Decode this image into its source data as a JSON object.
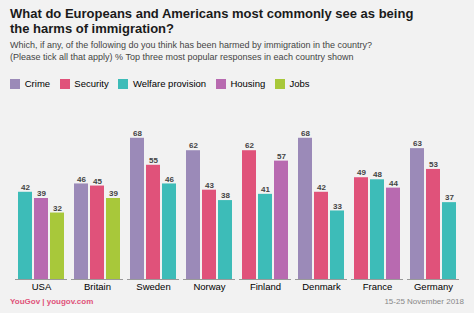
{
  "chart_data": {
    "type": "bar",
    "title": "What do Europeans and Americans most commonly see as being\nthe harms of immigration?",
    "subtitle": "Which, if any, of the following do you think has been harmed by immigration in the country?\n(Please tick all that apply) % Top three most popular responses in each country shown",
    "categories": [
      "USA",
      "Britain",
      "Sweden",
      "Norway",
      "Finland",
      "Denmark",
      "France",
      "Germany"
    ],
    "series": [
      {
        "name": "Crime",
        "color": "#9b8ab8",
        "values": [
          null,
          46,
          68,
          62,
          null,
          68,
          null,
          63
        ]
      },
      {
        "name": "Security",
        "color": "#e0527a",
        "values": [
          null,
          45,
          55,
          43,
          62,
          42,
          49,
          53
        ]
      },
      {
        "name": "Welfare provision",
        "color": "#3dbcb8",
        "values": [
          42,
          null,
          46,
          38,
          41,
          33,
          48,
          37
        ]
      },
      {
        "name": "Housing",
        "color": "#b86ab0",
        "values": [
          39,
          null,
          null,
          null,
          57,
          null,
          44,
          null
        ]
      },
      {
        "name": "Jobs",
        "color": "#a8c83a",
        "values": [
          32,
          39,
          null,
          null,
          null,
          null,
          null,
          null
        ]
      }
    ],
    "ylim": [
      0,
      78
    ],
    "grid": false,
    "legend": "upper left",
    "data_labels": true,
    "tick_labels": "x",
    "annotations": [
      "YouGov | yougov.com",
      "15-25 November 2018"
    ]
  }
}
